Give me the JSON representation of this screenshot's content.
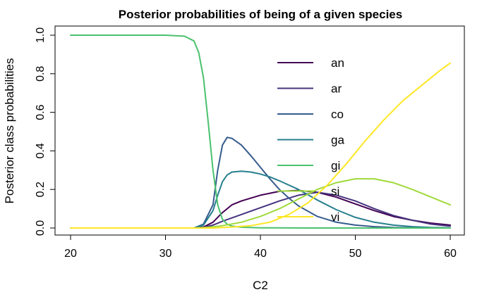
{
  "chart_data": {
    "type": "line",
    "title": "Posterior probabilities of being of a given species",
    "xlabel": "C2",
    "ylabel": "Posterior class probabilities",
    "xlim": [
      20,
      60
    ],
    "ylim": [
      0,
      1
    ],
    "xticks": [
      "20",
      "30",
      "40",
      "50",
      "60"
    ],
    "yticks": [
      "0.0",
      "0.2",
      "0.4",
      "0.6",
      "0.8",
      "1.0"
    ],
    "legend_position": "top-right",
    "series": [
      {
        "name": "an",
        "color": "#440154",
        "x": [
          20,
          33,
          34,
          35,
          36,
          37,
          38,
          40,
          42,
          44,
          46,
          48,
          50,
          52,
          54,
          56,
          58,
          60
        ],
        "y": [
          0,
          0,
          0.005,
          0.03,
          0.08,
          0.12,
          0.14,
          0.17,
          0.19,
          0.195,
          0.185,
          0.16,
          0.125,
          0.09,
          0.06,
          0.04,
          0.025,
          0.015
        ]
      },
      {
        "name": "ar",
        "color": "#46337E",
        "x": [
          20,
          33,
          34,
          35,
          36,
          38,
          40,
          42,
          44,
          46,
          48,
          50,
          52,
          54,
          56,
          58,
          60
        ],
        "y": [
          0,
          0,
          0.003,
          0.015,
          0.035,
          0.07,
          0.105,
          0.14,
          0.17,
          0.185,
          0.17,
          0.14,
          0.1,
          0.065,
          0.04,
          0.02,
          0.01
        ]
      },
      {
        "name": "co",
        "color": "#365C8D",
        "x": [
          20,
          33,
          34,
          35,
          35.5,
          36,
          36.5,
          37,
          38,
          39,
          40,
          41,
          42,
          43,
          44,
          46,
          48,
          50,
          52,
          54,
          56,
          58,
          60
        ],
        "y": [
          0,
          0,
          0.02,
          0.12,
          0.3,
          0.43,
          0.47,
          0.465,
          0.43,
          0.375,
          0.315,
          0.255,
          0.2,
          0.155,
          0.115,
          0.06,
          0.03,
          0.015,
          0.007,
          0.003,
          0.001,
          0,
          0
        ]
      },
      {
        "name": "ga",
        "color": "#277F8E",
        "x": [
          20,
          33,
          34,
          35,
          35.5,
          36,
          36.5,
          37,
          38,
          39,
          40,
          41,
          42,
          44,
          46,
          48,
          50,
          52,
          54,
          56,
          58,
          60
        ],
        "y": [
          0,
          0,
          0.015,
          0.09,
          0.17,
          0.24,
          0.275,
          0.29,
          0.295,
          0.29,
          0.28,
          0.265,
          0.245,
          0.2,
          0.145,
          0.095,
          0.055,
          0.03,
          0.015,
          0.007,
          0.003,
          0.001
        ]
      },
      {
        "name": "gi",
        "color": "#4AC16D",
        "x": [
          20,
          30,
          32,
          33,
          33.5,
          34,
          34.5,
          35,
          35.5,
          36,
          36.5,
          37,
          38,
          40,
          45,
          50,
          60
        ],
        "y": [
          1,
          1,
          0.995,
          0.97,
          0.91,
          0.78,
          0.55,
          0.3,
          0.12,
          0.045,
          0.02,
          0.01,
          0.004,
          0.001,
          0,
          0,
          0
        ]
      },
      {
        "name": "si",
        "color": "#9FDA3A",
        "x": [
          20,
          33,
          34,
          35,
          36,
          38,
          40,
          42,
          44,
          46,
          48,
          50,
          52,
          54,
          56,
          58,
          60
        ],
        "y": [
          0,
          0,
          0.002,
          0.006,
          0.012,
          0.03,
          0.06,
          0.1,
          0.15,
          0.2,
          0.235,
          0.255,
          0.255,
          0.235,
          0.2,
          0.16,
          0.12
        ]
      },
      {
        "name": "vi",
        "color": "#FDE725",
        "x": [
          20,
          35,
          37,
          39,
          41,
          43,
          45,
          47,
          49,
          51,
          53,
          55,
          57,
          59,
          60
        ],
        "y": [
          0,
          0,
          0.005,
          0.012,
          0.03,
          0.07,
          0.13,
          0.22,
          0.33,
          0.45,
          0.56,
          0.66,
          0.74,
          0.82,
          0.855
        ]
      }
    ]
  }
}
